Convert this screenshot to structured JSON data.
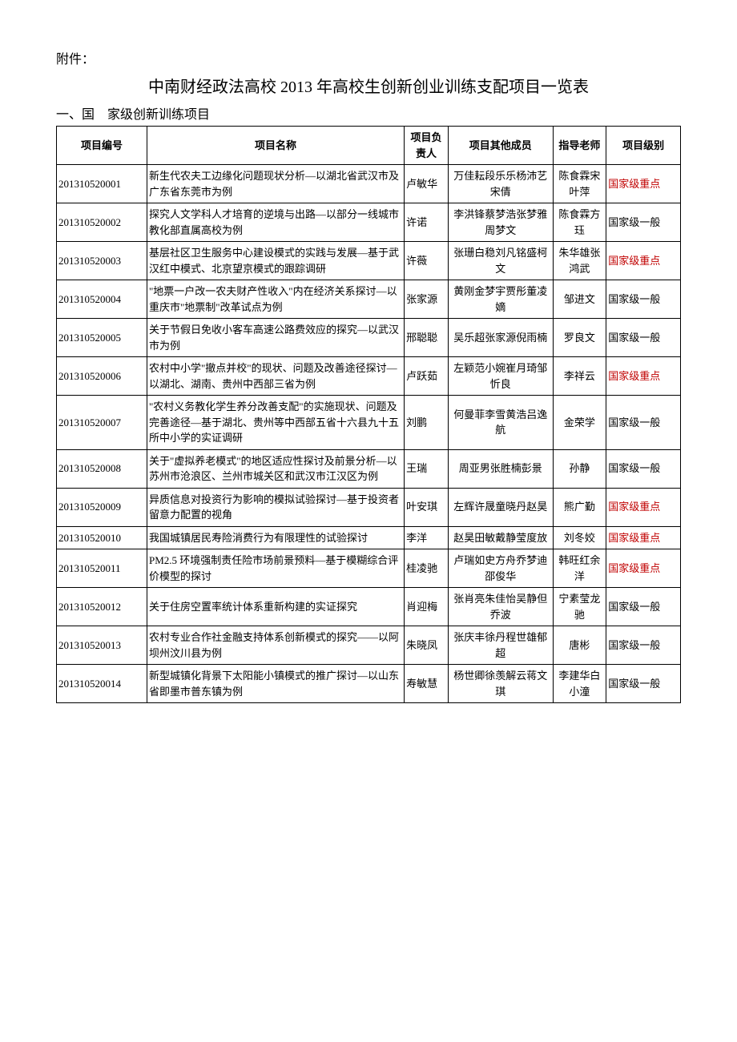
{
  "attachment_label": "附件：",
  "title": "中南财经政法高校 2013 年高校生创新创业训练支配项目一览表",
  "section_label": "一、国　家级创新训练项目",
  "columns": {
    "id": "项目编号",
    "name": "项目名称",
    "lead": "项目负责人",
    "members": "项目其他成员",
    "advisor": "指导老师",
    "level": "项目级别"
  },
  "level_colors": {
    "key": "#c00000",
    "normal": "#000000"
  },
  "rows": [
    {
      "id": "201310520001",
      "name": "新生代农夫工边缘化问题现状分析—以湖北省武汉市及广东省东莞市为例",
      "lead": "卢敏华",
      "members": "万佳耘段乐乐杨沛艺宋倩",
      "advisor": "陈食霖宋叶萍",
      "level": "国家级重点",
      "key": true
    },
    {
      "id": "201310520002",
      "name": "探究人文学科人才培育的逆境与出路—以部分一线城市教化部直属高校为例",
      "lead": "许诺",
      "members": "李洪锋蔡梦浩张梦雅周梦文",
      "advisor": "陈食霖方珏",
      "level": "国家级一般",
      "key": false
    },
    {
      "id": "201310520003",
      "name": "基层社区卫生服务中心建设模式的实践与发展—基于武汉红中模式、北京望京模式的跟踪调研",
      "lead": "许薇",
      "members": "张珊白稳刘凡铭盛柯文",
      "advisor": "朱华雄张鸿武",
      "level": "国家级重点",
      "key": true
    },
    {
      "id": "201310520004",
      "name": "\"地票一户改一农夫财产性收入\"内在经济关系探讨—以重庆市\"地票制\"改革试点为例",
      "lead": "张家源",
      "members": "黄刚金梦宇贾彤董凌嫡",
      "advisor": "邹进文",
      "level": "国家级一般",
      "key": false
    },
    {
      "id": "201310520005",
      "name": "关于节假日免收小客车高速公路费效应的探究—以武汉市为例",
      "lead": "邢聪聪",
      "members": "吴乐超张家源倪雨楠",
      "advisor": "罗良文",
      "level": "国家级一般",
      "key": false
    },
    {
      "id": "201310520006",
      "name": "农村中小学\"撤点并校\"的现状、问题及改善途径探讨—以湖北、湖南、贵州中西部三省为例",
      "lead": "卢跃茹",
      "members": "左颖范小婉崔月琦邹忻良",
      "advisor": "李祥云",
      "level": "国家级重点",
      "key": true
    },
    {
      "id": "201310520007",
      "name": "\"农村义务教化学生养分改善支配\"的实施现状、问题及完善途径—基于湖北、贵州等中西部五省十六县九十五所中小学的实证调研",
      "lead": "刘鹏",
      "members": "何曼菲李雪黄浩吕逸航",
      "advisor": "金荣学",
      "level": "国家级一般",
      "key": false
    },
    {
      "id": "201310520008",
      "name": "关于\"虚拟养老模式\"的地区适应性探讨及前景分析—以苏州市沧浪区、兰州市城关区和武汉市江汉区为例",
      "lead": "王瑞",
      "members": "周亚男张胜楠彭景",
      "advisor": "孙静",
      "level": "国家级一般",
      "key": false
    },
    {
      "id": "201310520009",
      "name": "异质信息对投资行为影响的模拟试验探讨—基于投资者留意力配置的视角",
      "lead": "叶安琪",
      "members": "左辉许晟童晓丹赵昊",
      "advisor": "熊广勤",
      "level": "国家级重点",
      "key": true
    },
    {
      "id": "201310520010",
      "name": "我国城镇居民寿险消费行为有限理性的试验探讨",
      "lead": "李洋",
      "members": "赵昊田敏戴静莹度放",
      "advisor": "刘冬姣",
      "level": "国家级重点",
      "key": true
    },
    {
      "id": "201310520011",
      "name": "PM2.5 环境强制责任险市场前景预料—基于模糊综合评价模型的探讨",
      "lead": "桂凌驰",
      "members": "卢瑞如史方舟乔梦迪邵俊华",
      "advisor": "韩旺红余洋",
      "level": "国家级重点",
      "key": true
    },
    {
      "id": "201310520012",
      "name": "关于住房空置率统计体系重新构建的实证探究",
      "lead": "肖迎梅",
      "members": "张肖亮朱佳怡吴静但乔波",
      "advisor": "宁素莹龙驰",
      "level": "国家级一般",
      "key": false
    },
    {
      "id": "201310520013",
      "name": "农村专业合作社金融支持体系创新模式的探究——以阿坝州汶川县为例",
      "lead": "朱晓凤",
      "members": "张庆丰徐丹程世雄郁超",
      "advisor": "唐彬",
      "level": "国家级一般",
      "key": false
    },
    {
      "id": "201310520014",
      "name": "新型城镇化背景下太阳能小镇模式的推广探讨—以山东省即墨市普东镇为例",
      "lead": "寿敏慧",
      "members": "杨世卿徐羡解云蒋文琪",
      "advisor": "李建华白小潼",
      "level": "国家级一般",
      "key": false
    }
  ]
}
